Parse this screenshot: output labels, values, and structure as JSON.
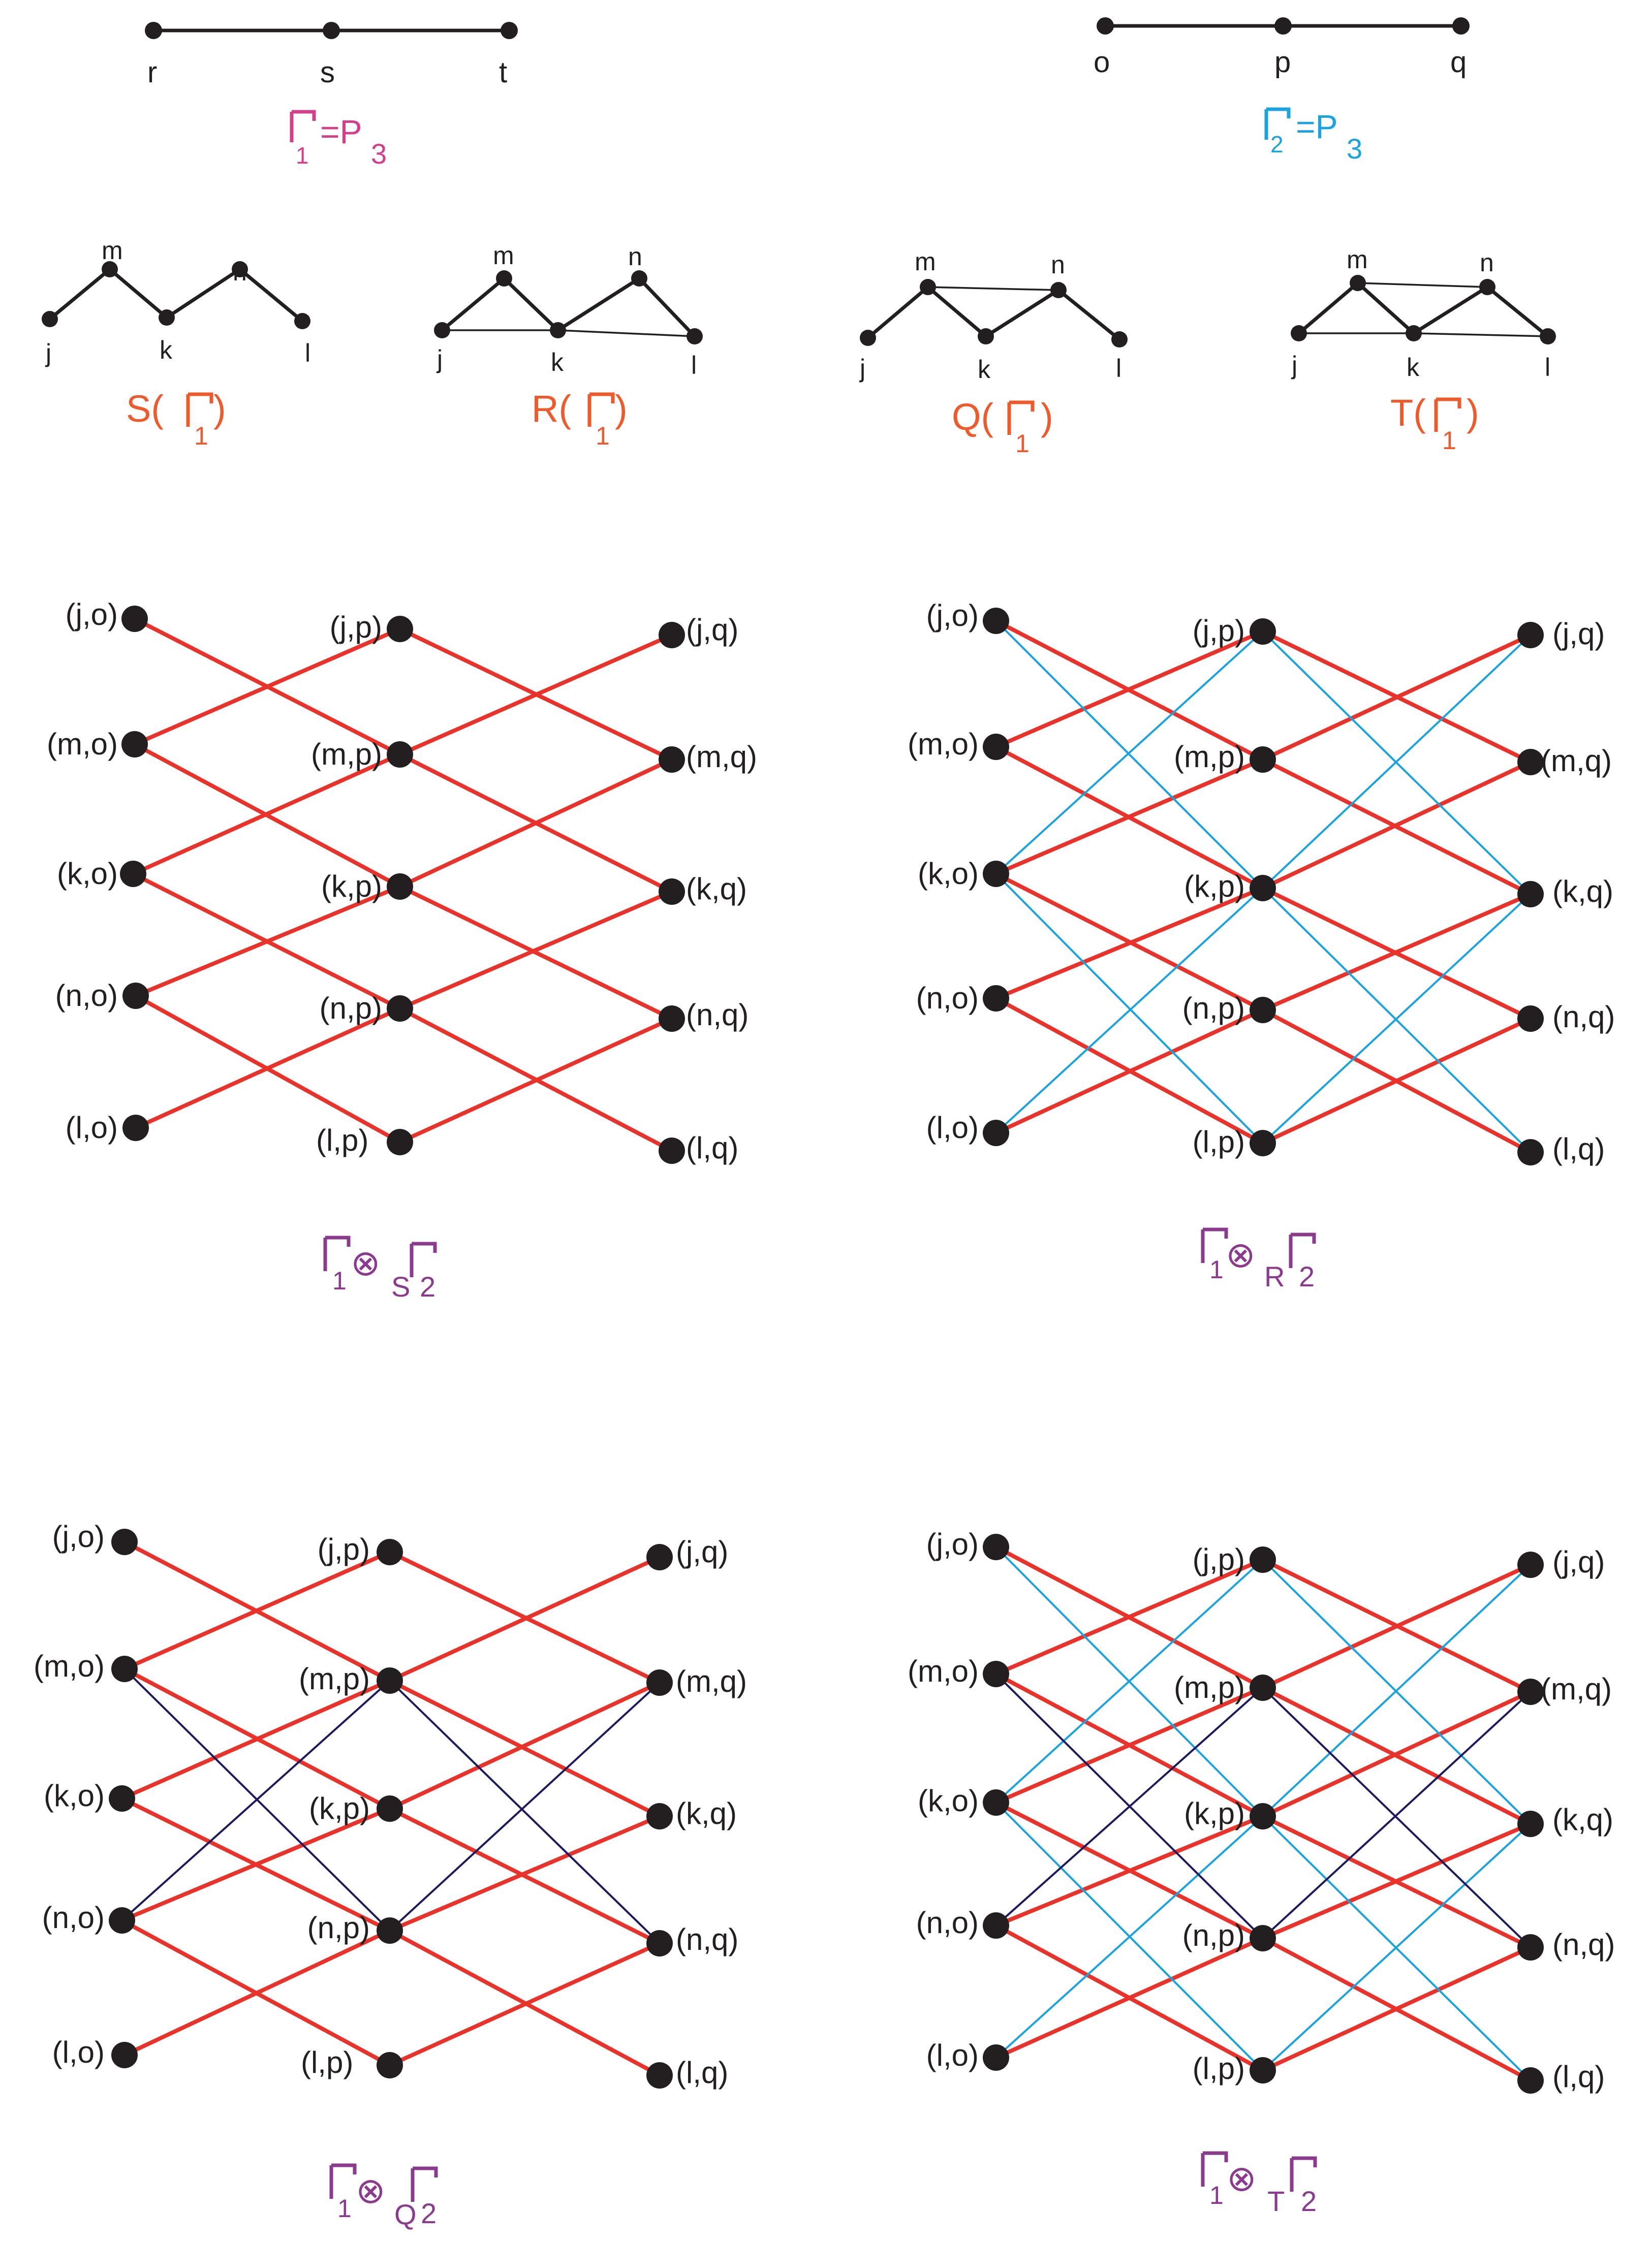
{
  "colors": {
    "vertex": "#231f20",
    "edge_black": "#231f20",
    "edge_red": "#e8322a",
    "edge_cyan": "#1aa3de",
    "edge_navy": "#1e1a5e",
    "caption_magenta": "#d43f8c",
    "caption_cyan": "#1aa3de",
    "caption_orange": "#ef5a2c",
    "caption_purple": "#8b3a8f"
  },
  "path1": {
    "vertices": [
      "r",
      "s",
      "t"
    ],
    "caption": {
      "gamma_sub": "1",
      "rest": "=P",
      "rest_sub": "3"
    }
  },
  "path2": {
    "vertices": [
      "o",
      "p",
      "q"
    ],
    "caption": {
      "gamma_sub": "2",
      "rest": "=P",
      "rest_sub": "3"
    }
  },
  "small_graphs": [
    {
      "id": "S",
      "caption": {
        "prefix": "S(",
        "gamma_sub": "1",
        "suffix": ")"
      },
      "labels": [
        "j",
        "m",
        "k",
        "n",
        "l"
      ]
    },
    {
      "id": "R",
      "caption": {
        "prefix": "R(",
        "gamma_sub": "1",
        "suffix": ")"
      },
      "labels": [
        "j",
        "m",
        "k",
        "n",
        "l"
      ]
    },
    {
      "id": "Q",
      "caption": {
        "prefix": "Q(",
        "gamma_sub": "1",
        "suffix": ")"
      },
      "labels": [
        "j",
        "m",
        "k",
        "n",
        "l"
      ]
    },
    {
      "id": "T",
      "caption": {
        "prefix": "T(",
        "gamma_sub": "1",
        "suffix": ")"
      },
      "labels": [
        "j",
        "m",
        "k",
        "n",
        "l"
      ]
    }
  ],
  "products": [
    {
      "id": "S",
      "caption": {
        "sub1": "1",
        "op": "⊗",
        "op_sub": "S",
        "sub2": "2"
      },
      "labels": {
        "col0": [
          "(j,o)",
          "(m,o)",
          "(k,o)",
          "(n,o)",
          "(l,o)"
        ],
        "col1": [
          "(j,p)",
          "(m,p)",
          "(k,p)",
          "(n,p)",
          "(l,p)"
        ],
        "col2": [
          "(j,q)",
          "(m,q)",
          "(k,q)",
          "(n,q)",
          "(l,q)"
        ]
      }
    },
    {
      "id": "R",
      "caption": {
        "sub1": "1",
        "op": "⊗",
        "op_sub": "R",
        "sub2": "2"
      },
      "labels": {
        "col0": [
          "(j,o)",
          "(m,o)",
          "(k,o)",
          "(n,o)",
          "(l,o)"
        ],
        "col1": [
          "(j,p)",
          "(m,p)",
          "(k,p)",
          "(n,p)",
          "(l,p)"
        ],
        "col2": [
          "(j,q)",
          "(m,q)",
          "(k,q)",
          "(n,q)",
          "(l,q)"
        ]
      }
    },
    {
      "id": "Q",
      "caption": {
        "sub1": "1",
        "op": "⊗",
        "op_sub": "Q",
        "sub2": "2"
      },
      "labels": {
        "col0": [
          "(j,o)",
          "(m,o)",
          "(k,o)",
          "(n,o)",
          "(l,o)"
        ],
        "col1": [
          "(j,p)",
          "(m,p)",
          "(k,p)",
          "(n,p)",
          "(l,p)"
        ],
        "col2": [
          "(j,q)",
          "(m,q)",
          "(k,q)",
          "(n,q)",
          "(l,q)"
        ]
      }
    },
    {
      "id": "T",
      "caption": {
        "sub1": "1",
        "op": "⊗",
        "op_sub": "T",
        "sub2": "2"
      },
      "labels": {
        "col0": [
          "(j,o)",
          "(m,o)",
          "(k,o)",
          "(n,o)",
          "(l,o)"
        ],
        "col1": [
          "(j,p)",
          "(m,p)",
          "(k,p)",
          "(n,p)",
          "(l,p)"
        ],
        "col2": [
          "(j,q)",
          "(m,q)",
          "(k,q)",
          "(n,q)",
          "(l,q)"
        ]
      }
    }
  ]
}
